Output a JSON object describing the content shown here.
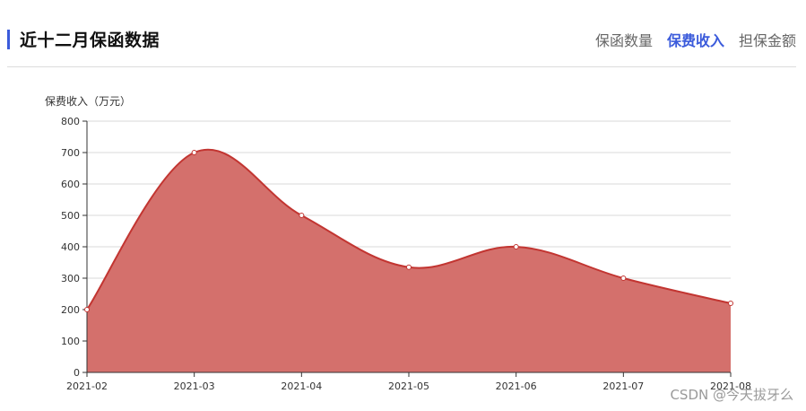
{
  "header": {
    "title": "近十二月保函数据",
    "tabs": [
      {
        "label": "保函数量",
        "active": false
      },
      {
        "label": "保费收入",
        "active": true
      },
      {
        "label": "担保金额",
        "active": false
      }
    ]
  },
  "colors": {
    "accent": "#3b5bdb",
    "area_fill": "#d4706c",
    "line": "#c23531"
  },
  "chart_data": {
    "type": "area",
    "title": "",
    "xlabel": "",
    "ylabel": "保费收入（万元）",
    "categories": [
      "2021-02",
      "2021-03",
      "2021-04",
      "2021-05",
      "2021-06",
      "2021-07",
      "2021-08"
    ],
    "series": [
      {
        "values": [
          200,
          700,
          500,
          335,
          400,
          300,
          220
        ]
      }
    ],
    "ylim": [
      0,
      800
    ],
    "yticks": [
      "0",
      "100",
      "200",
      "300",
      "400",
      "500",
      "600",
      "700",
      "800"
    ],
    "grid": true,
    "smooth": true
  },
  "watermark": "CSDN @今天拔牙么"
}
